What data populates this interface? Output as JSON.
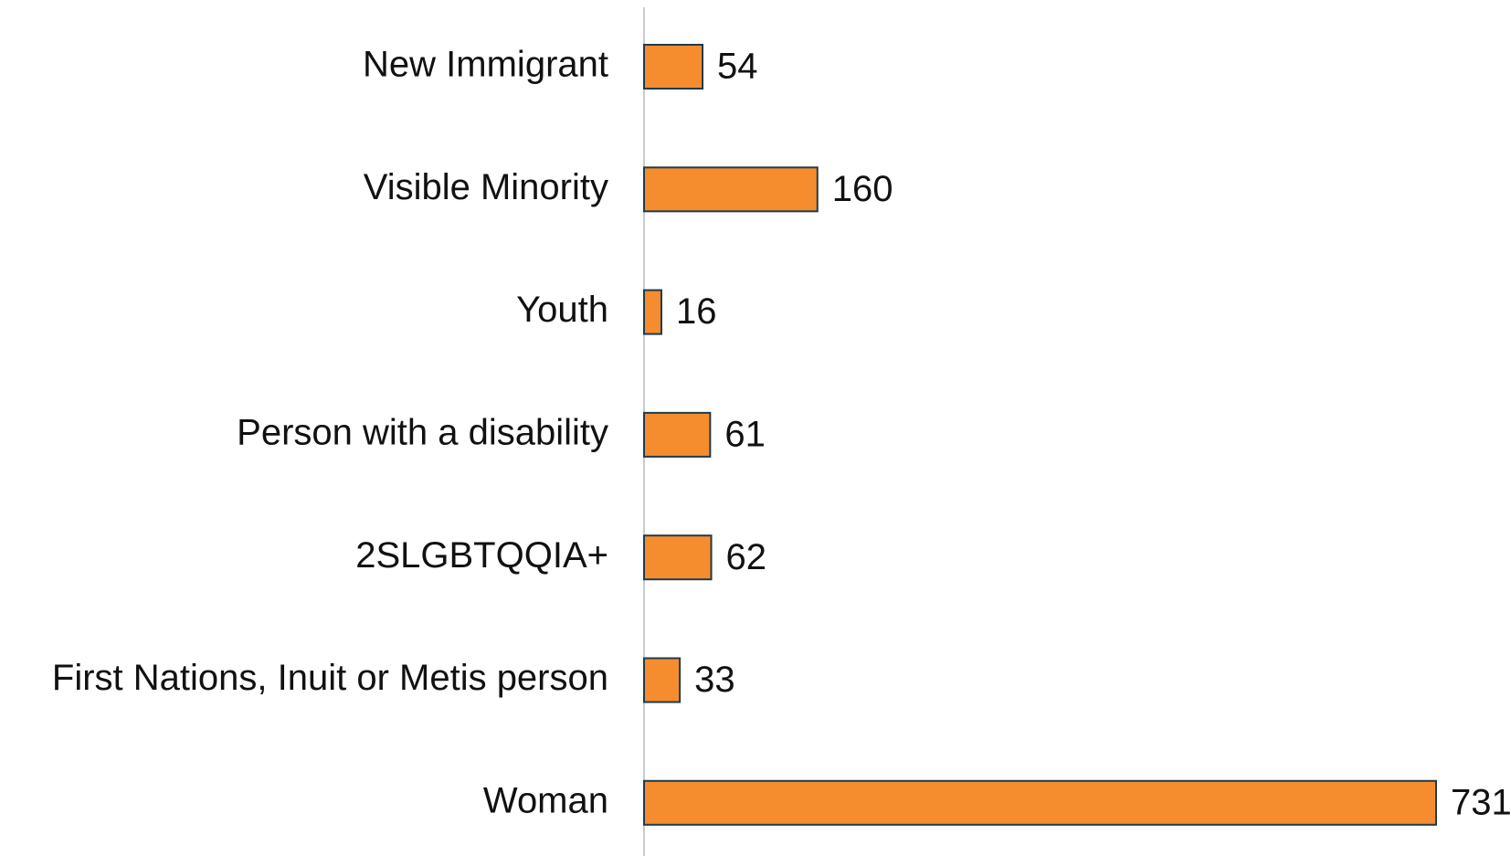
{
  "chart_data": {
    "type": "bar",
    "orientation": "horizontal",
    "categories": [
      "New Immigrant",
      "Visible Minority",
      "Youth",
      "Person with a disability",
      "2SLGBTQQIA+",
      "First Nations, Inuit or Metis person",
      "Woman"
    ],
    "values": [
      54,
      160,
      16,
      61,
      62,
      33,
      731
    ],
    "color": "#f58d2f",
    "edge_color": "#1f3b4d"
  }
}
